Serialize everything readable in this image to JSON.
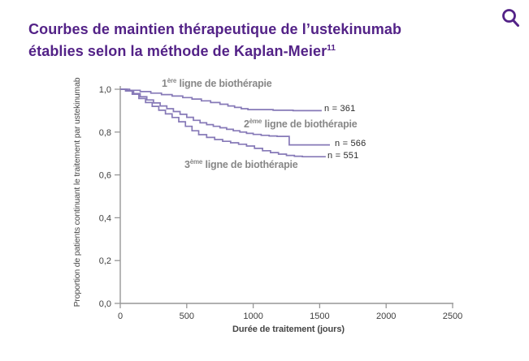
{
  "header": {
    "title_line1": "Courbes de maintien thérapeutique de l’ustekinumab",
    "title_line2": "établies selon la méthode de Kaplan-Meier",
    "title_ref": "11",
    "accent_color": "#532287"
  },
  "icons": {
    "search": "magnifier"
  },
  "chart_data": {
    "type": "line",
    "subtype": "kaplan-meier-step",
    "title": "",
    "xlabel": "Durée de traitement (jours)",
    "ylabel": "Proportion de patients continuant le traitement par ustekinumab",
    "xlim": [
      0,
      2500
    ],
    "ylim": [
      0.0,
      1.0
    ],
    "grid": false,
    "legend_position": "inline-annotations",
    "curve_color": "#8679b7",
    "axis_color": "#979797",
    "series_label_color": "#878787",
    "xticks": [
      {
        "v": 0,
        "label": "0"
      },
      {
        "v": 500,
        "label": "500"
      },
      {
        "v": 1000,
        "label": "1000"
      },
      {
        "v": 1500,
        "label": "1500"
      },
      {
        "v": 2000,
        "label": "2000"
      },
      {
        "v": 2500,
        "label": "2500"
      }
    ],
    "yticks": [
      {
        "v": 0.0,
        "label": "0,0"
      },
      {
        "v": 0.2,
        "label": "0,2"
      },
      {
        "v": 0.4,
        "label": "0,4"
      },
      {
        "v": 0.6,
        "label": "0,6"
      },
      {
        "v": 0.8,
        "label": "0,8"
      },
      {
        "v": 1.0,
        "label": "1,0"
      }
    ],
    "series": [
      {
        "name": "1ère ligne de biothérapie",
        "label_num": "1",
        "label_sup": "ère",
        "label_rest": " ligne de biothérapie",
        "n": 361,
        "n_label": "n = 361",
        "final_proportion": 0.9,
        "end_t": 1515,
        "points": [
          [
            0,
            1.0
          ],
          [
            70,
            0.995
          ],
          [
            150,
            0.989
          ],
          [
            230,
            0.982
          ],
          [
            310,
            0.975
          ],
          [
            390,
            0.968
          ],
          [
            470,
            0.961
          ],
          [
            540,
            0.954
          ],
          [
            610,
            0.946
          ],
          [
            680,
            0.938
          ],
          [
            750,
            0.93
          ],
          [
            810,
            0.922
          ],
          [
            860,
            0.915
          ],
          [
            910,
            0.909
          ],
          [
            960,
            0.905
          ],
          [
            1150,
            0.902
          ],
          [
            1300,
            0.9
          ]
        ]
      },
      {
        "name": "2ème ligne de biothérapie",
        "label_num": "2",
        "label_sup": "ème",
        "label_rest": " ligne de biothérapie",
        "n": 566,
        "n_label": "n = 566",
        "final_proportion": 0.74,
        "end_t": 1577,
        "points": [
          [
            0,
            1.0
          ],
          [
            50,
            0.993
          ],
          [
            100,
            0.98
          ],
          [
            150,
            0.965
          ],
          [
            200,
            0.95
          ],
          [
            250,
            0.936
          ],
          [
            300,
            0.922
          ],
          [
            350,
            0.909
          ],
          [
            400,
            0.896
          ],
          [
            450,
            0.883
          ],
          [
            500,
            0.869
          ],
          [
            550,
            0.855
          ],
          [
            600,
            0.843
          ],
          [
            650,
            0.835
          ],
          [
            700,
            0.827
          ],
          [
            750,
            0.82
          ],
          [
            800,
            0.813
          ],
          [
            850,
            0.806
          ],
          [
            900,
            0.8
          ],
          [
            950,
            0.794
          ],
          [
            1000,
            0.789
          ],
          [
            1060,
            0.785
          ],
          [
            1120,
            0.782
          ],
          [
            1180,
            0.78
          ],
          [
            1271,
            0.74
          ]
        ]
      },
      {
        "name": "3ème ligne de biothérapie",
        "label_num": "3",
        "label_sup": "ème",
        "label_rest": " ligne de biothérapie",
        "n": 551,
        "n_label": "n = 551",
        "final_proportion": 0.685,
        "end_t": 1546,
        "points": [
          [
            0,
            1.0
          ],
          [
            40,
            0.992
          ],
          [
            90,
            0.977
          ],
          [
            140,
            0.957
          ],
          [
            190,
            0.938
          ],
          [
            240,
            0.92
          ],
          [
            290,
            0.902
          ],
          [
            340,
            0.885
          ],
          [
            390,
            0.868
          ],
          [
            440,
            0.848
          ],
          [
            490,
            0.827
          ],
          [
            540,
            0.806
          ],
          [
            590,
            0.788
          ],
          [
            650,
            0.775
          ],
          [
            710,
            0.765
          ],
          [
            770,
            0.757
          ],
          [
            830,
            0.75
          ],
          [
            890,
            0.743
          ],
          [
            950,
            0.735
          ],
          [
            1010,
            0.724
          ],
          [
            1070,
            0.713
          ],
          [
            1130,
            0.704
          ],
          [
            1190,
            0.697
          ],
          [
            1250,
            0.691
          ],
          [
            1310,
            0.687
          ],
          [
            1370,
            0.685
          ]
        ]
      }
    ]
  }
}
